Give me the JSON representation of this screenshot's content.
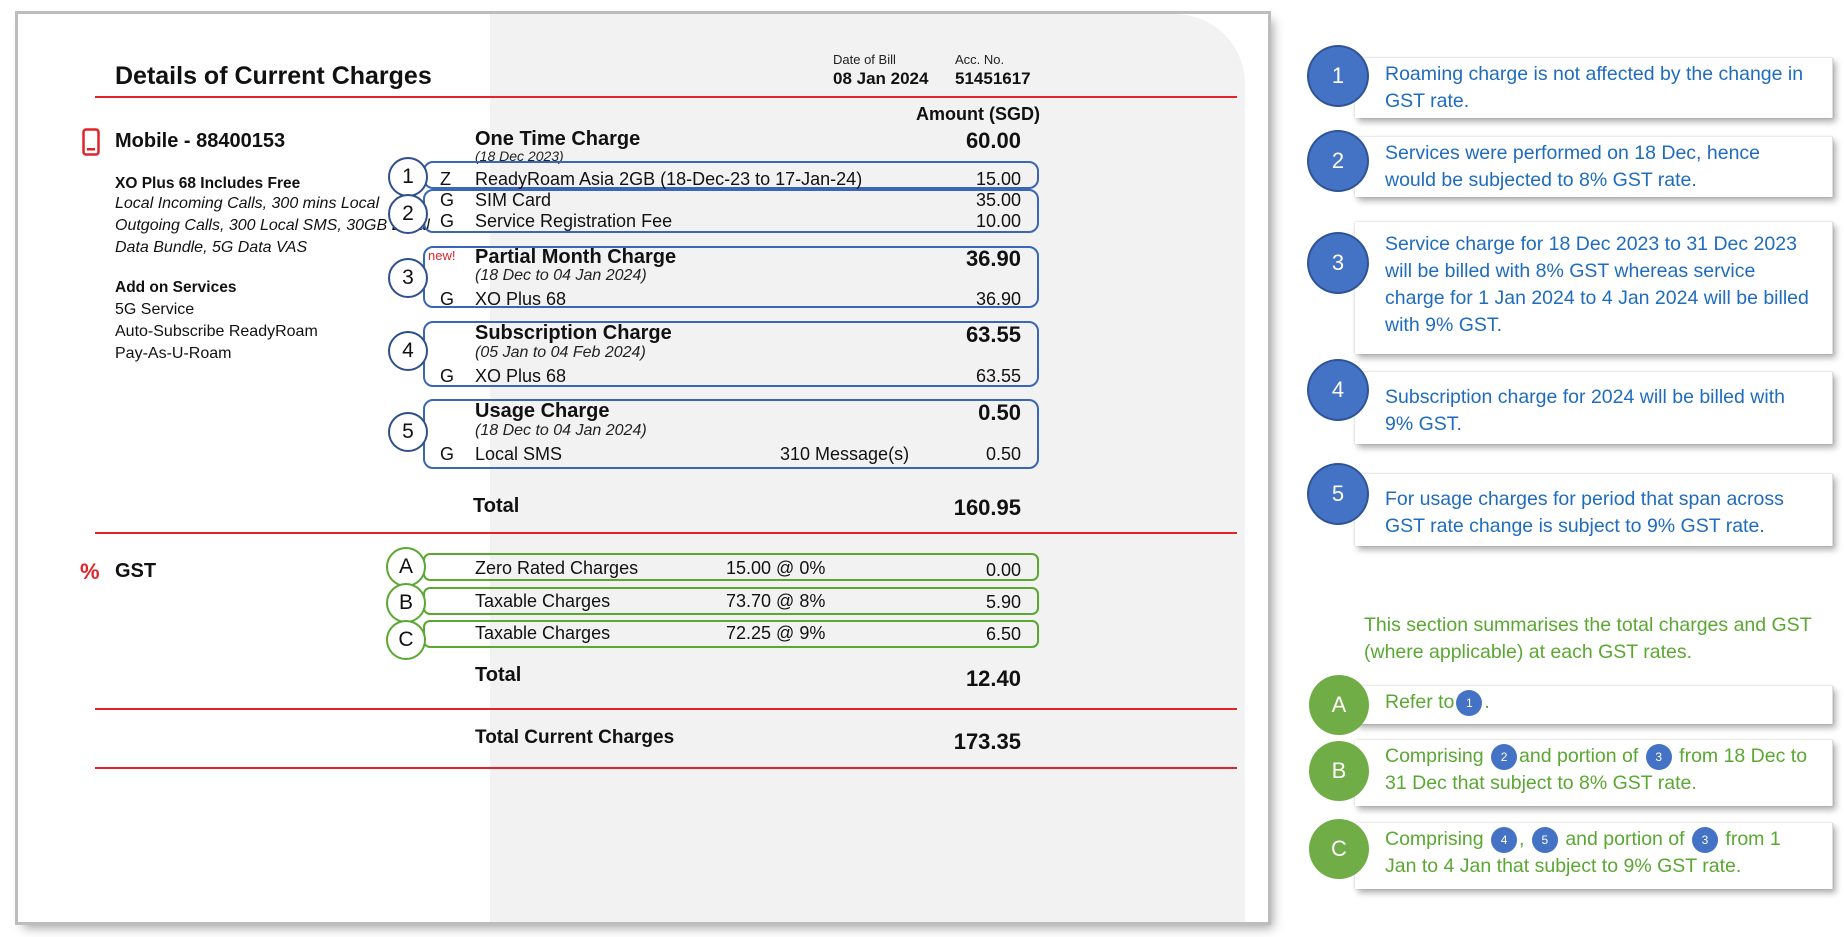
{
  "bill": {
    "title": "Details of Current Charges",
    "date_label": "Date of Bill",
    "date_value": "08 Jan 2024",
    "acc_label": "Acc. No.",
    "acc_value": "51451617",
    "amount_header": "Amount (SGD)",
    "mobile": {
      "icon": "mobile-phone-icon",
      "title": "Mobile - 88400153",
      "plan_title": "XO Plus 68 Includes Free",
      "plan_lines": [
        "Local Incoming Calls, 300 mins Local",
        "Outgoing Calls, 300 Local SMS, 30GB Local",
        "Data Bundle, 5G Data VAS"
      ],
      "addon_title": "Add on Services",
      "addons": [
        "5G Service",
        "Auto-Subscribe ReadyRoam",
        "Pay-As-U-Roam"
      ]
    },
    "one_time": {
      "title": "One Time Charge",
      "period": "(18 Dec 2023)",
      "amount": "60.00",
      "items": [
        {
          "code": "Z",
          "desc": "ReadyRoam Asia 2GB (18-Dec-23 to 17-Jan-24)",
          "amount": "15.00"
        },
        {
          "code": "G",
          "desc": "SIM Card",
          "amount": "35.00"
        },
        {
          "code": "G",
          "desc": "Service Registration Fee",
          "amount": "10.00"
        }
      ]
    },
    "partial": {
      "badge": "new!",
      "title": "Partial Month Charge",
      "period": "(18 Dec to 04 Jan 2024)",
      "amount": "36.90",
      "item": {
        "code": "G",
        "desc": "XO Plus 68",
        "amount": "36.90"
      }
    },
    "subscription": {
      "title": "Subscription Charge",
      "period": "(05 Jan to 04 Feb 2024)",
      "amount": "63.55",
      "item": {
        "code": "G",
        "desc": "XO Plus 68",
        "amount": "63.55"
      }
    },
    "usage": {
      "title": "Usage Charge",
      "period": "(18 Dec to 04 Jan 2024)",
      "amount": "0.50",
      "item": {
        "code": "G",
        "desc": "Local SMS",
        "qty": "310 Message(s)",
        "amount": "0.50"
      }
    },
    "total_label": "Total",
    "total_value": "160.95",
    "gst": {
      "icon": "percent-icon",
      "symbol": "%",
      "title": "GST",
      "rows": [
        {
          "desc": "Zero Rated Charges",
          "rate": "15.00 @ 0%",
          "amount": "0.00"
        },
        {
          "desc": "Taxable Charges",
          "rate": "73.70 @ 8%",
          "amount": "5.90"
        },
        {
          "desc": "Taxable Charges",
          "rate": "72.25 @ 9%",
          "amount": "6.50"
        }
      ],
      "total_label": "Total",
      "total_value": "12.40"
    },
    "grand_label": "Total Current Charges",
    "grand_value": "173.35",
    "markers_blue": [
      "1",
      "2",
      "3",
      "4",
      "5"
    ],
    "markers_green": [
      "A",
      "B",
      "C"
    ]
  },
  "notes": {
    "n1": "Roaming charge is not affected by the change in GST rate.",
    "n2": " Services were performed on 18 Dec, hence would be subjected to 8% GST rate.",
    "n3": "Service charge for 18 Dec 2023 to 31 Dec 2023 will be billed with 8% GST whereas service charge for 1 Jan 2024 to 4 Jan 2024 will be billed with 9% GST.",
    "n4": "Subscription charge for 2024 will be billed with 9% GST.",
    "n5": "For usage charges for period that span across GST rate change is subject to 9% GST rate.",
    "summary": "This section summarises the total charges and GST (where applicable) at each GST rates.",
    "a_pre": "Refer to",
    "a_post": ".",
    "b_pre": "Comprising",
    "b_mid": "and portion of",
    "b_post": "from 18 Dec to 31 Dec that subject to 8% GST rate.",
    "c_pre": "Comprising",
    "c_comma": ",",
    "c_mid": "and portion of",
    "c_post": "from 1 Jan to 4 Jan that subject to 9% GST rate."
  }
}
